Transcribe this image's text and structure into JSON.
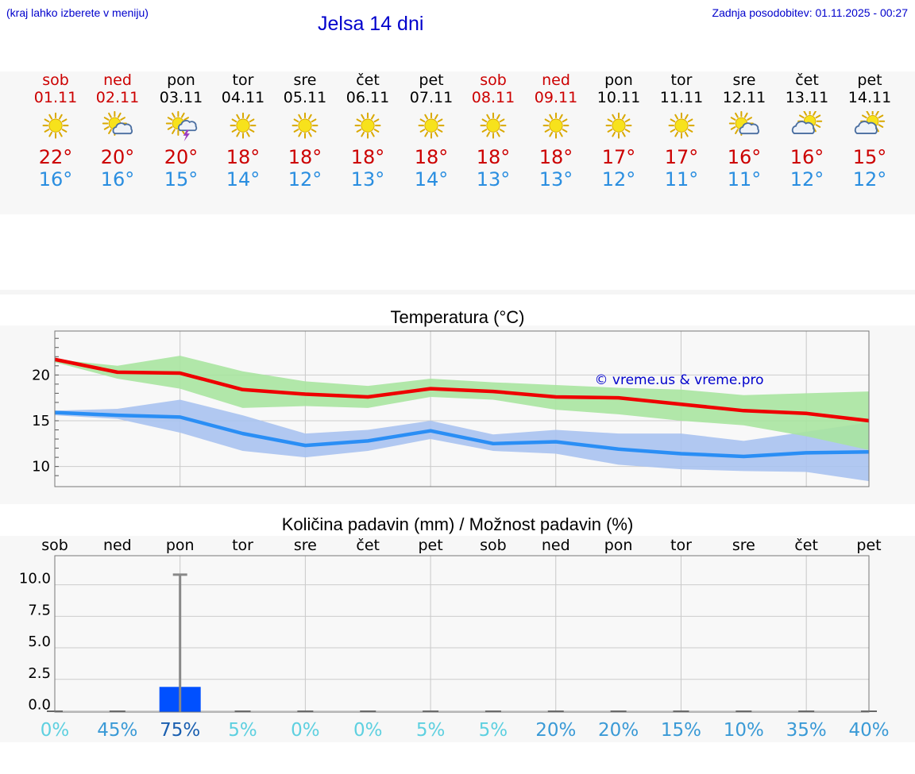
{
  "header": {
    "hint": "(kraj lahko izberete v meniju)",
    "title": "Jelsa 14 dni",
    "updated": "Zadnja posodobitev: 01.11.2025 - 00:27"
  },
  "days": [
    {
      "name": "sob",
      "date": "01.11",
      "weekend": true,
      "icon": "sun-icon",
      "tmax": "22°",
      "tmin": "16°"
    },
    {
      "name": "ned",
      "date": "02.11",
      "weekend": true,
      "icon": "sun-cloud-icon",
      "tmax": "20°",
      "tmin": "16°"
    },
    {
      "name": "pon",
      "date": "03.11",
      "weekend": false,
      "icon": "sun-thunderstorm-icon",
      "tmax": "20°",
      "tmin": "15°"
    },
    {
      "name": "tor",
      "date": "04.11",
      "weekend": false,
      "icon": "sun-icon",
      "tmax": "18°",
      "tmin": "14°"
    },
    {
      "name": "sre",
      "date": "05.11",
      "weekend": false,
      "icon": "sun-icon",
      "tmax": "18°",
      "tmin": "12°"
    },
    {
      "name": "čet",
      "date": "06.11",
      "weekend": false,
      "icon": "sun-icon",
      "tmax": "18°",
      "tmin": "13°"
    },
    {
      "name": "pet",
      "date": "07.11",
      "weekend": false,
      "icon": "sun-icon",
      "tmax": "18°",
      "tmin": "14°"
    },
    {
      "name": "sob",
      "date": "08.11",
      "weekend": true,
      "icon": "sun-icon",
      "tmax": "18°",
      "tmin": "13°"
    },
    {
      "name": "ned",
      "date": "09.11",
      "weekend": true,
      "icon": "sun-icon",
      "tmax": "18°",
      "tmin": "13°"
    },
    {
      "name": "pon",
      "date": "10.11",
      "weekend": false,
      "icon": "sun-icon",
      "tmax": "17°",
      "tmin": "12°"
    },
    {
      "name": "tor",
      "date": "11.11",
      "weekend": false,
      "icon": "sun-icon",
      "tmax": "17°",
      "tmin": "11°"
    },
    {
      "name": "sre",
      "date": "12.11",
      "weekend": false,
      "icon": "sun-cloud-icon",
      "tmax": "16°",
      "tmin": "11°"
    },
    {
      "name": "čet",
      "date": "13.11",
      "weekend": false,
      "icon": "cloud-sun-icon",
      "tmax": "16°",
      "tmin": "12°"
    },
    {
      "name": "pet",
      "date": "14.11",
      "weekend": false,
      "icon": "cloud-sun-icon",
      "tmax": "15°",
      "tmin": "12°"
    }
  ],
  "colors": {
    "weekend": "#cc0000",
    "max_line": "#ee0000",
    "min_line": "#2a8ef5",
    "max_band": "#a8e4a0",
    "min_band": "#a9c2f0",
    "rain_bar": "#0050ff",
    "watermark": "#0000cc"
  },
  "chart_data": [
    {
      "type": "line",
      "title": "Temperatura (°C)",
      "x": [
        0,
        1,
        2,
        3,
        4,
        5,
        6,
        7,
        8,
        9,
        10,
        11,
        12,
        13
      ],
      "yticks": [
        "10",
        "15",
        "20"
      ],
      "ylim": [
        7.8,
        24.8
      ],
      "watermark": "© vreme.us & vreme.pro",
      "series": [
        {
          "name": "max",
          "values": [
            21.7,
            20.3,
            20.2,
            18.4,
            17.9,
            17.6,
            18.5,
            18.2,
            17.6,
            17.5,
            16.8,
            16.1,
            15.8,
            15.0
          ]
        },
        {
          "name": "min",
          "values": [
            15.9,
            15.6,
            15.4,
            13.6,
            12.3,
            12.8,
            13.9,
            12.5,
            12.7,
            11.9,
            11.4,
            11.1,
            11.5,
            11.6
          ]
        }
      ],
      "bands": [
        {
          "name": "max_range",
          "upper": [
            21.7,
            21.0,
            22.1,
            20.4,
            19.3,
            18.8,
            19.6,
            19.2,
            18.9,
            18.6,
            18.4,
            17.8,
            18.0,
            18.2
          ],
          "lower": [
            21.4,
            19.6,
            18.5,
            16.4,
            16.6,
            16.4,
            17.6,
            17.3,
            16.2,
            15.7,
            15.0,
            14.5,
            13.3,
            11.8
          ]
        },
        {
          "name": "min_range",
          "upper": [
            16.1,
            16.3,
            17.3,
            15.6,
            13.6,
            14.0,
            15.0,
            13.5,
            14.0,
            13.6,
            13.6,
            12.8,
            13.8,
            14.8
          ],
          "lower": [
            15.6,
            15.2,
            13.7,
            11.7,
            11.0,
            11.7,
            13.0,
            11.7,
            11.4,
            10.2,
            9.7,
            9.5,
            9.4,
            8.4
          ]
        }
      ]
    },
    {
      "type": "bar",
      "title": "Količina padavin (mm) / Možnost padavin (%)",
      "categories": [
        "sob",
        "ned",
        "pon",
        "tor",
        "sre",
        "čet",
        "pet",
        "sob",
        "ned",
        "pon",
        "tor",
        "sre",
        "čet",
        "pet"
      ],
      "values": [
        0,
        0,
        1.9,
        0,
        0,
        0,
        0,
        0,
        0,
        0,
        0,
        0,
        0,
        0
      ],
      "error_max": [
        0,
        0,
        10.8,
        0,
        0,
        0,
        0,
        0,
        0,
        0,
        0,
        0,
        0,
        0
      ],
      "yticks": [
        "0.0",
        "2.5",
        "5.0",
        "7.5",
        "10.0"
      ],
      "ylim": [
        -0.6,
        11.8
      ],
      "probabilities": [
        "0%",
        "45%",
        "75%",
        "5%",
        "0%",
        "0%",
        "5%",
        "5%",
        "20%",
        "20%",
        "15%",
        "10%",
        "35%",
        "40%"
      ],
      "probability_values": [
        0,
        45,
        75,
        5,
        0,
        0,
        5,
        5,
        20,
        20,
        15,
        10,
        35,
        40
      ]
    }
  ]
}
